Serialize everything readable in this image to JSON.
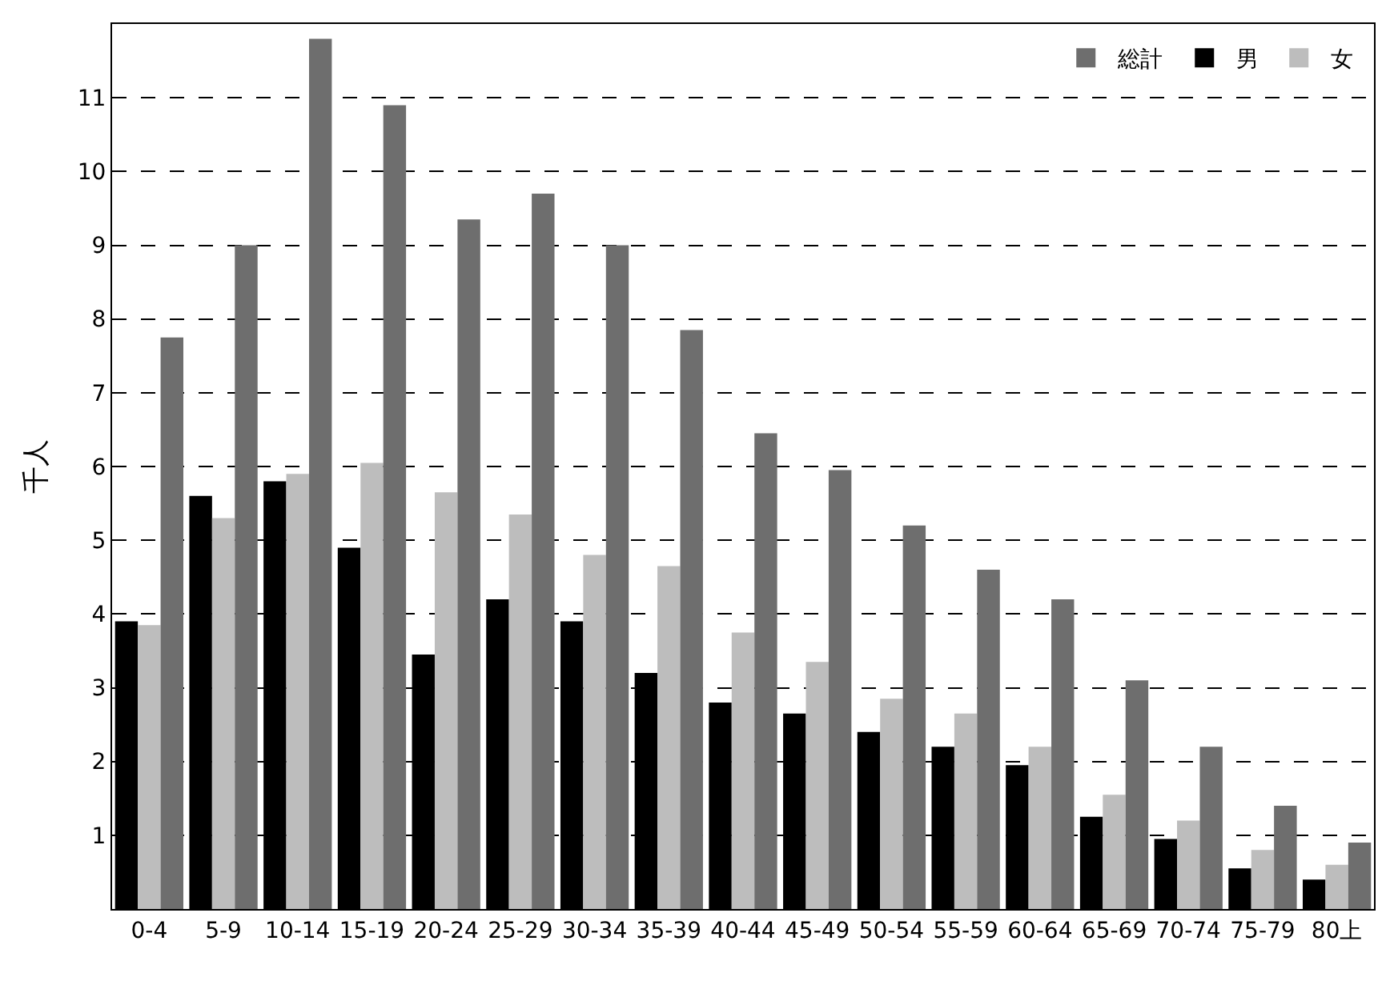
{
  "chart_data": {
    "type": "bar",
    "ylabel": "千人",
    "categories": [
      "0-4",
      "5-9",
      "10-14",
      "15-19",
      "20-24",
      "25-29",
      "30-34",
      "35-39",
      "40-44",
      "45-49",
      "50-54",
      "55-59",
      "60-64",
      "65-69",
      "70-74",
      "75-79",
      "80上"
    ],
    "series": [
      {
        "name": "男",
        "color": "#000000",
        "values": [
          3.9,
          5.6,
          5.8,
          4.9,
          3.45,
          4.2,
          3.9,
          3.2,
          2.8,
          2.65,
          2.4,
          2.2,
          1.95,
          1.25,
          0.95,
          0.55,
          0.4
        ]
      },
      {
        "name": "女",
        "color": "#bdbdbd",
        "values": [
          3.85,
          5.3,
          5.9,
          6.05,
          5.65,
          5.35,
          4.8,
          4.65,
          3.75,
          3.35,
          2.85,
          2.65,
          2.2,
          1.55,
          1.2,
          0.8,
          0.6
        ]
      },
      {
        "name": "総計",
        "color": "#6e6e6e",
        "values": [
          7.75,
          9.0,
          11.8,
          10.9,
          9.35,
          9.7,
          9.0,
          7.85,
          6.45,
          5.95,
          5.2,
          4.6,
          4.2,
          3.1,
          2.2,
          1.4,
          0.9
        ]
      }
    ],
    "ylim": [
      0,
      12
    ],
    "yticks": [
      1,
      2,
      3,
      4,
      5,
      6,
      7,
      8,
      9,
      10,
      11
    ],
    "grid": "y",
    "legend": "top right"
  }
}
